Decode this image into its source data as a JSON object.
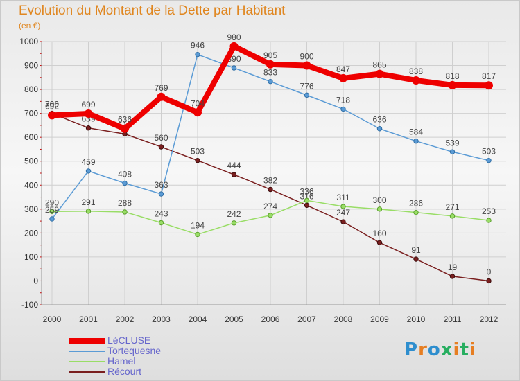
{
  "header": {
    "title": "Evolution du Montant de la Dette par Habitant",
    "subtitle": "(en €)"
  },
  "logo": {
    "text": "Proxiti",
    "letters": [
      "P",
      "r",
      "o",
      "x",
      "i",
      "t",
      "i"
    ]
  },
  "colors": {
    "title": "#e0861f",
    "grid": "#cfcfcf",
    "axis_tick": "#cc0000",
    "legend_text": "#6666cc"
  },
  "chart_data": {
    "type": "line",
    "title": "Evolution du Montant de la Dette par Habitant",
    "subtitle": "(en €)",
    "xlabel": "",
    "ylabel": "",
    "ylim": [
      -100,
      1000
    ],
    "yticks": [
      -100,
      0,
      100,
      200,
      300,
      400,
      500,
      600,
      700,
      800,
      900,
      1000
    ],
    "grid": true,
    "legend_position": "bottom-left",
    "x": [
      2000,
      2001,
      2002,
      2003,
      2004,
      2005,
      2006,
      2007,
      2008,
      2009,
      2010,
      2011,
      2012
    ],
    "series": [
      {
        "name": "LéCLUSE",
        "color": "#ee0000",
        "values": [
          692,
          699,
          636,
          769,
          704,
          980,
          905,
          900,
          847,
          865,
          838,
          818,
          817
        ],
        "labels": [
          "692",
          "699",
          "636",
          "769",
          "704",
          "980",
          "905",
          "900",
          "847",
          "865",
          "838",
          "818",
          "817"
        ]
      },
      {
        "name": "Tortequesne",
        "color": "#5b9bd5",
        "values": [
          259,
          459,
          408,
          363,
          946,
          890,
          833,
          776,
          718,
          636,
          584,
          539,
          503
        ],
        "labels": [
          "259",
          "459",
          "408",
          "363",
          "946",
          "890",
          "833",
          "776",
          "718",
          "636",
          "584",
          "539",
          "503"
        ]
      },
      {
        "name": "Hamel",
        "color": "#99dd66",
        "values": [
          290,
          291,
          288,
          243,
          194,
          242,
          274,
          336,
          311,
          300,
          286,
          271,
          253
        ],
        "labels": [
          "290",
          "291",
          "288",
          "243",
          "194",
          "242",
          "274",
          "336",
          "311",
          "300",
          "286",
          "271",
          "253"
        ]
      },
      {
        "name": "Récourt",
        "color": "#7a1f1f",
        "values": [
          700,
          639,
          614,
          560,
          503,
          444,
          382,
          316,
          247,
          160,
          91,
          19,
          0
        ],
        "labels": [
          "700",
          "639",
          "614",
          "560",
          "503",
          "444",
          "382",
          "316",
          "247",
          "160",
          "91",
          "19",
          "0"
        ]
      }
    ]
  }
}
